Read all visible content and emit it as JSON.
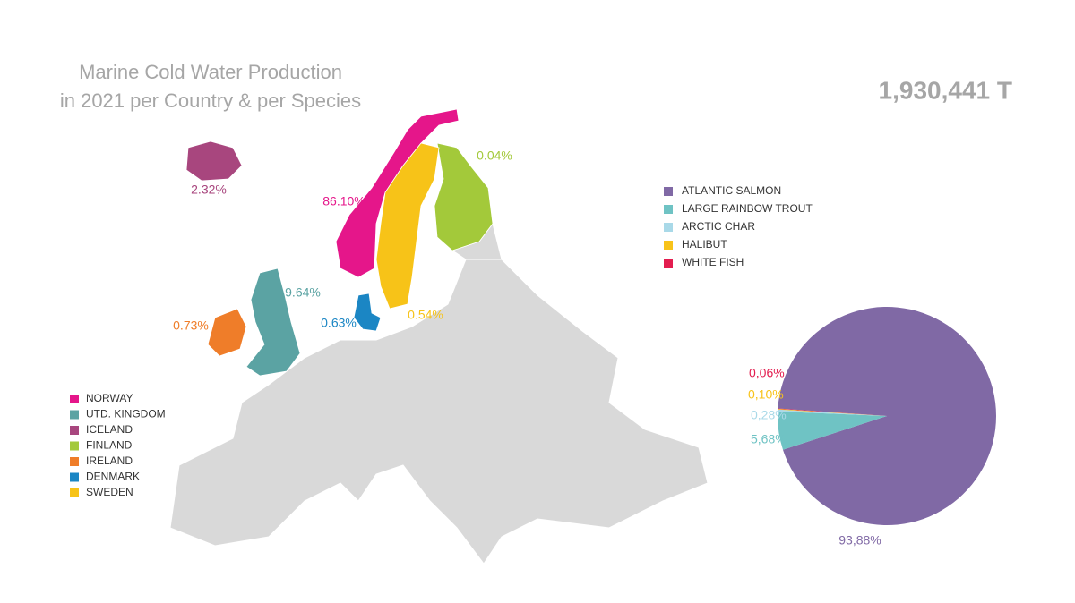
{
  "title": [
    "Marine Cold Water Production",
    "in 2021 per Country & per Species"
  ],
  "total": "1,930,441 T",
  "chart_data": [
    {
      "type": "map",
      "categories": [
        "NORWAY",
        "UTD. KINGDOM",
        "ICELAND",
        "FINLAND",
        "IRELAND",
        "DENMARK",
        "SWEDEN"
      ],
      "values": [
        86.1,
        9.64,
        2.32,
        0.04,
        0.73,
        0.63,
        0.54
      ],
      "value_labels": [
        "86.10%",
        "9.64%",
        "2.32%",
        "0.04%",
        "0.73%",
        "0.63%",
        "0.54%"
      ],
      "colors": [
        "#e5168a",
        "#5ba3a3",
        "#a8467e",
        "#a3c93a",
        "#ef7d29",
        "#1b86c4",
        "#f7c318"
      ]
    },
    {
      "type": "pie",
      "categories": [
        "ATLANTIC SALMON",
        "LARGE RAINBOW TROUT",
        "ARCTIC CHAR",
        "HALIBUT",
        "WHITE FISH"
      ],
      "values": [
        93.88,
        5.68,
        0.28,
        0.1,
        0.06
      ],
      "value_labels": [
        "93,88%",
        "5,68%",
        "0,28%",
        "0,10%",
        "0,06%"
      ],
      "colors": [
        "#8069a5",
        "#6fc3c4",
        "#a9d9e8",
        "#f8c31a",
        "#e31d4f"
      ]
    }
  ]
}
